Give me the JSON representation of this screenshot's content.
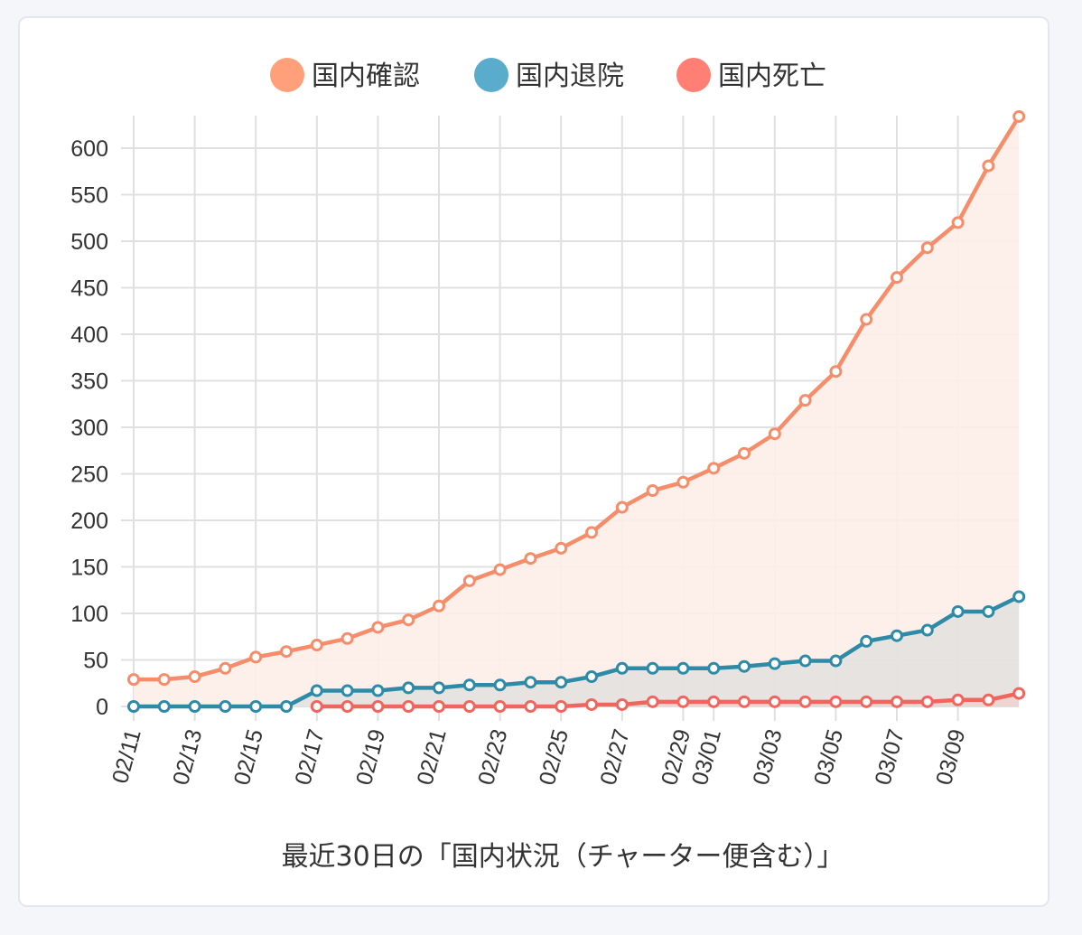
{
  "chart_data": {
    "type": "line",
    "title": "",
    "xlabel": "最近30日の「国内状況（チャーター便含む）」",
    "ylabel": "",
    "ylim": [
      0,
      630
    ],
    "yticks": [
      0,
      50,
      100,
      150,
      200,
      250,
      300,
      350,
      400,
      450,
      500,
      550,
      600
    ],
    "grid": true,
    "legend_position": "top-center",
    "area_fill": true,
    "x": [
      "02/11",
      "02/12",
      "02/13",
      "02/14",
      "02/15",
      "02/16",
      "02/17",
      "02/18",
      "02/19",
      "02/20",
      "02/21",
      "02/22",
      "02/23",
      "02/24",
      "02/25",
      "02/26",
      "02/27",
      "02/28",
      "02/29",
      "03/01",
      "03/02",
      "03/03",
      "03/04",
      "03/05",
      "03/06",
      "03/07",
      "03/08",
      "03/09",
      "03/10",
      "03/11"
    ],
    "x_tick_labels": [
      "02/11",
      "02/13",
      "02/15",
      "02/17",
      "02/19",
      "02/21",
      "02/23",
      "02/25",
      "02/27",
      "02/29",
      "03/01",
      "03/03",
      "03/05",
      "03/07",
      "03/09"
    ],
    "series": [
      {
        "name": "国内確認",
        "color": "#f58d6b",
        "legend_color": "#ffa07a",
        "values": [
          29,
          29,
          32,
          41,
          53,
          59,
          66,
          73,
          85,
          93,
          108,
          135,
          147,
          159,
          170,
          187,
          214,
          232,
          241,
          256,
          272,
          293,
          329,
          360,
          416,
          461,
          493,
          520,
          581,
          634
        ]
      },
      {
        "name": "国内退院",
        "color": "#2e8ba8",
        "legend_color": "#5aaccc",
        "values": [
          0,
          0,
          0,
          0,
          0,
          0,
          17,
          17,
          17,
          20,
          20,
          23,
          23,
          26,
          26,
          32,
          41,
          41,
          41,
          41,
          43,
          46,
          49,
          49,
          70,
          76,
          82,
          102,
          102,
          118
        ]
      },
      {
        "name": "国内死亡",
        "color": "#f0665e",
        "legend_color": "#ff7f74",
        "values": [
          null,
          null,
          null,
          null,
          null,
          null,
          0,
          0,
          0,
          0,
          0,
          0,
          0,
          0,
          0,
          2,
          2,
          5,
          5,
          5,
          5,
          5,
          5,
          5,
          5,
          5,
          5,
          7,
          7,
          14
        ]
      }
    ]
  }
}
